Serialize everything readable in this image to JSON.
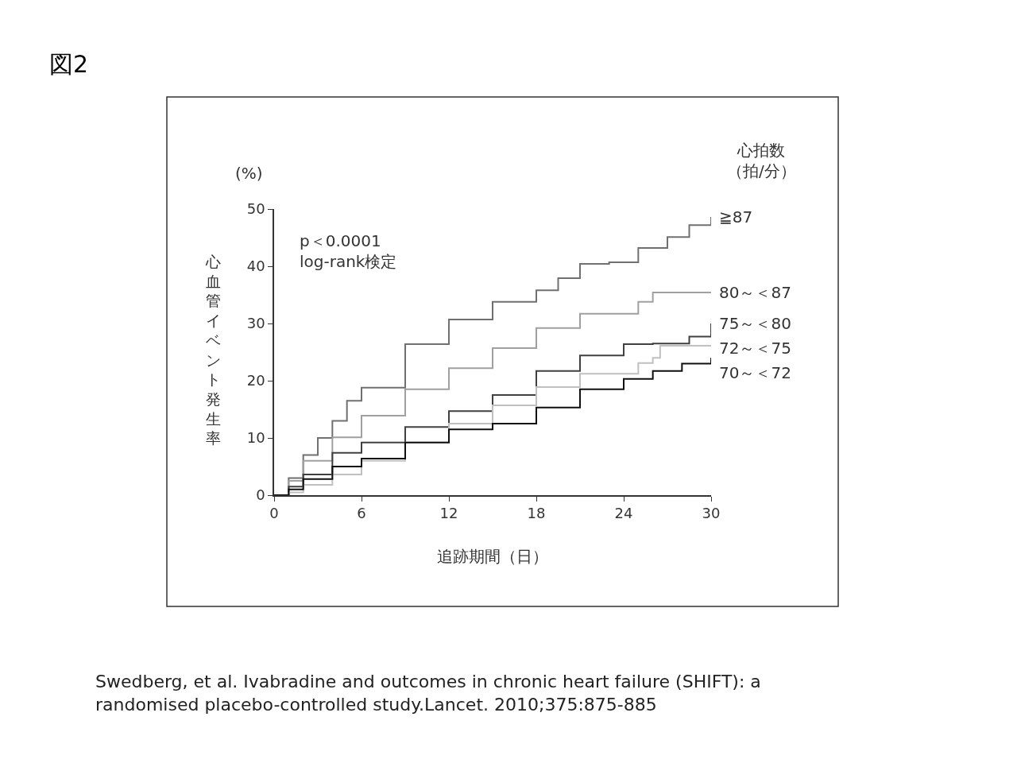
{
  "chart_data": {
    "type": "step",
    "title": "図2",
    "xlabel": "追跡期間（日）",
    "ylabel": "心血管イベント発生率",
    "legend_title": "心拍数（拍/分）",
    "annotations": [
      "(%)",
      "p＜0.0001\nlog-rank検定",
      "Swedberg, et al. Ivabradine and outcomes in chronic heart failure (SHIFT): a\nrandomised placebo-controlled study.Lancet. 2010;375:875-885"
    ],
    "xlim": [
      0,
      30
    ],
    "ylim": [
      0,
      50
    ],
    "xticks": [
      0,
      6,
      12,
      18,
      24,
      30
    ],
    "yticks": [
      0,
      10,
      20,
      30,
      40,
      50
    ],
    "legend": "right",
    "series": [
      {
        "name": "≧87",
        "color": "#707070",
        "x": [
          0,
          1,
          2,
          3,
          4,
          5,
          6,
          9,
          12,
          15,
          18,
          19.5,
          21,
          23,
          25,
          27,
          28.5,
          30
        ],
        "values": [
          0,
          3,
          7,
          10,
          13,
          16.5,
          18.8,
          26.4,
          30.7,
          33.8,
          35.8,
          37.9,
          40.4,
          40.7,
          43.2,
          45.1,
          47.2,
          48.6
        ]
      },
      {
        "name": "80～＜87",
        "color": "#a0a0a0",
        "x": [
          0,
          1,
          2,
          4,
          6,
          9,
          12,
          15,
          18,
          21,
          25,
          26,
          30
        ],
        "values": [
          0,
          2.5,
          6,
          10.1,
          13.9,
          18.5,
          22.2,
          25.7,
          29.2,
          31.7,
          33.8,
          35.4,
          35.4
        ]
      },
      {
        "name": "75～＜80",
        "color": "#404040",
        "x": [
          0,
          1,
          2,
          4,
          6,
          9,
          12,
          15,
          18,
          21,
          24,
          26,
          28.5,
          30
        ],
        "values": [
          0,
          1.5,
          3.6,
          7.4,
          9.2,
          11.9,
          14.7,
          17.5,
          21.7,
          24.4,
          26.4,
          26.5,
          27.7,
          30
        ]
      },
      {
        "name": "72～＜75",
        "color": "#c0c0c0",
        "x": [
          0,
          1,
          2,
          4,
          6,
          9,
          12,
          15,
          18,
          21,
          25,
          26,
          26.5,
          30
        ],
        "values": [
          0,
          0.5,
          1.8,
          3.6,
          6,
          9.2,
          12.5,
          15.7,
          18.9,
          21.2,
          23.1,
          24,
          26.1,
          26.1
        ]
      },
      {
        "name": "70～＜72",
        "color": "#101010",
        "x": [
          0,
          1,
          2,
          4,
          6,
          9,
          12,
          15,
          18,
          21,
          24,
          26,
          28,
          30
        ],
        "values": [
          0,
          1,
          2.8,
          5,
          6.4,
          9.2,
          11.5,
          12.5,
          15.3,
          18.5,
          20.3,
          21.7,
          23,
          24
        ]
      }
    ]
  }
}
